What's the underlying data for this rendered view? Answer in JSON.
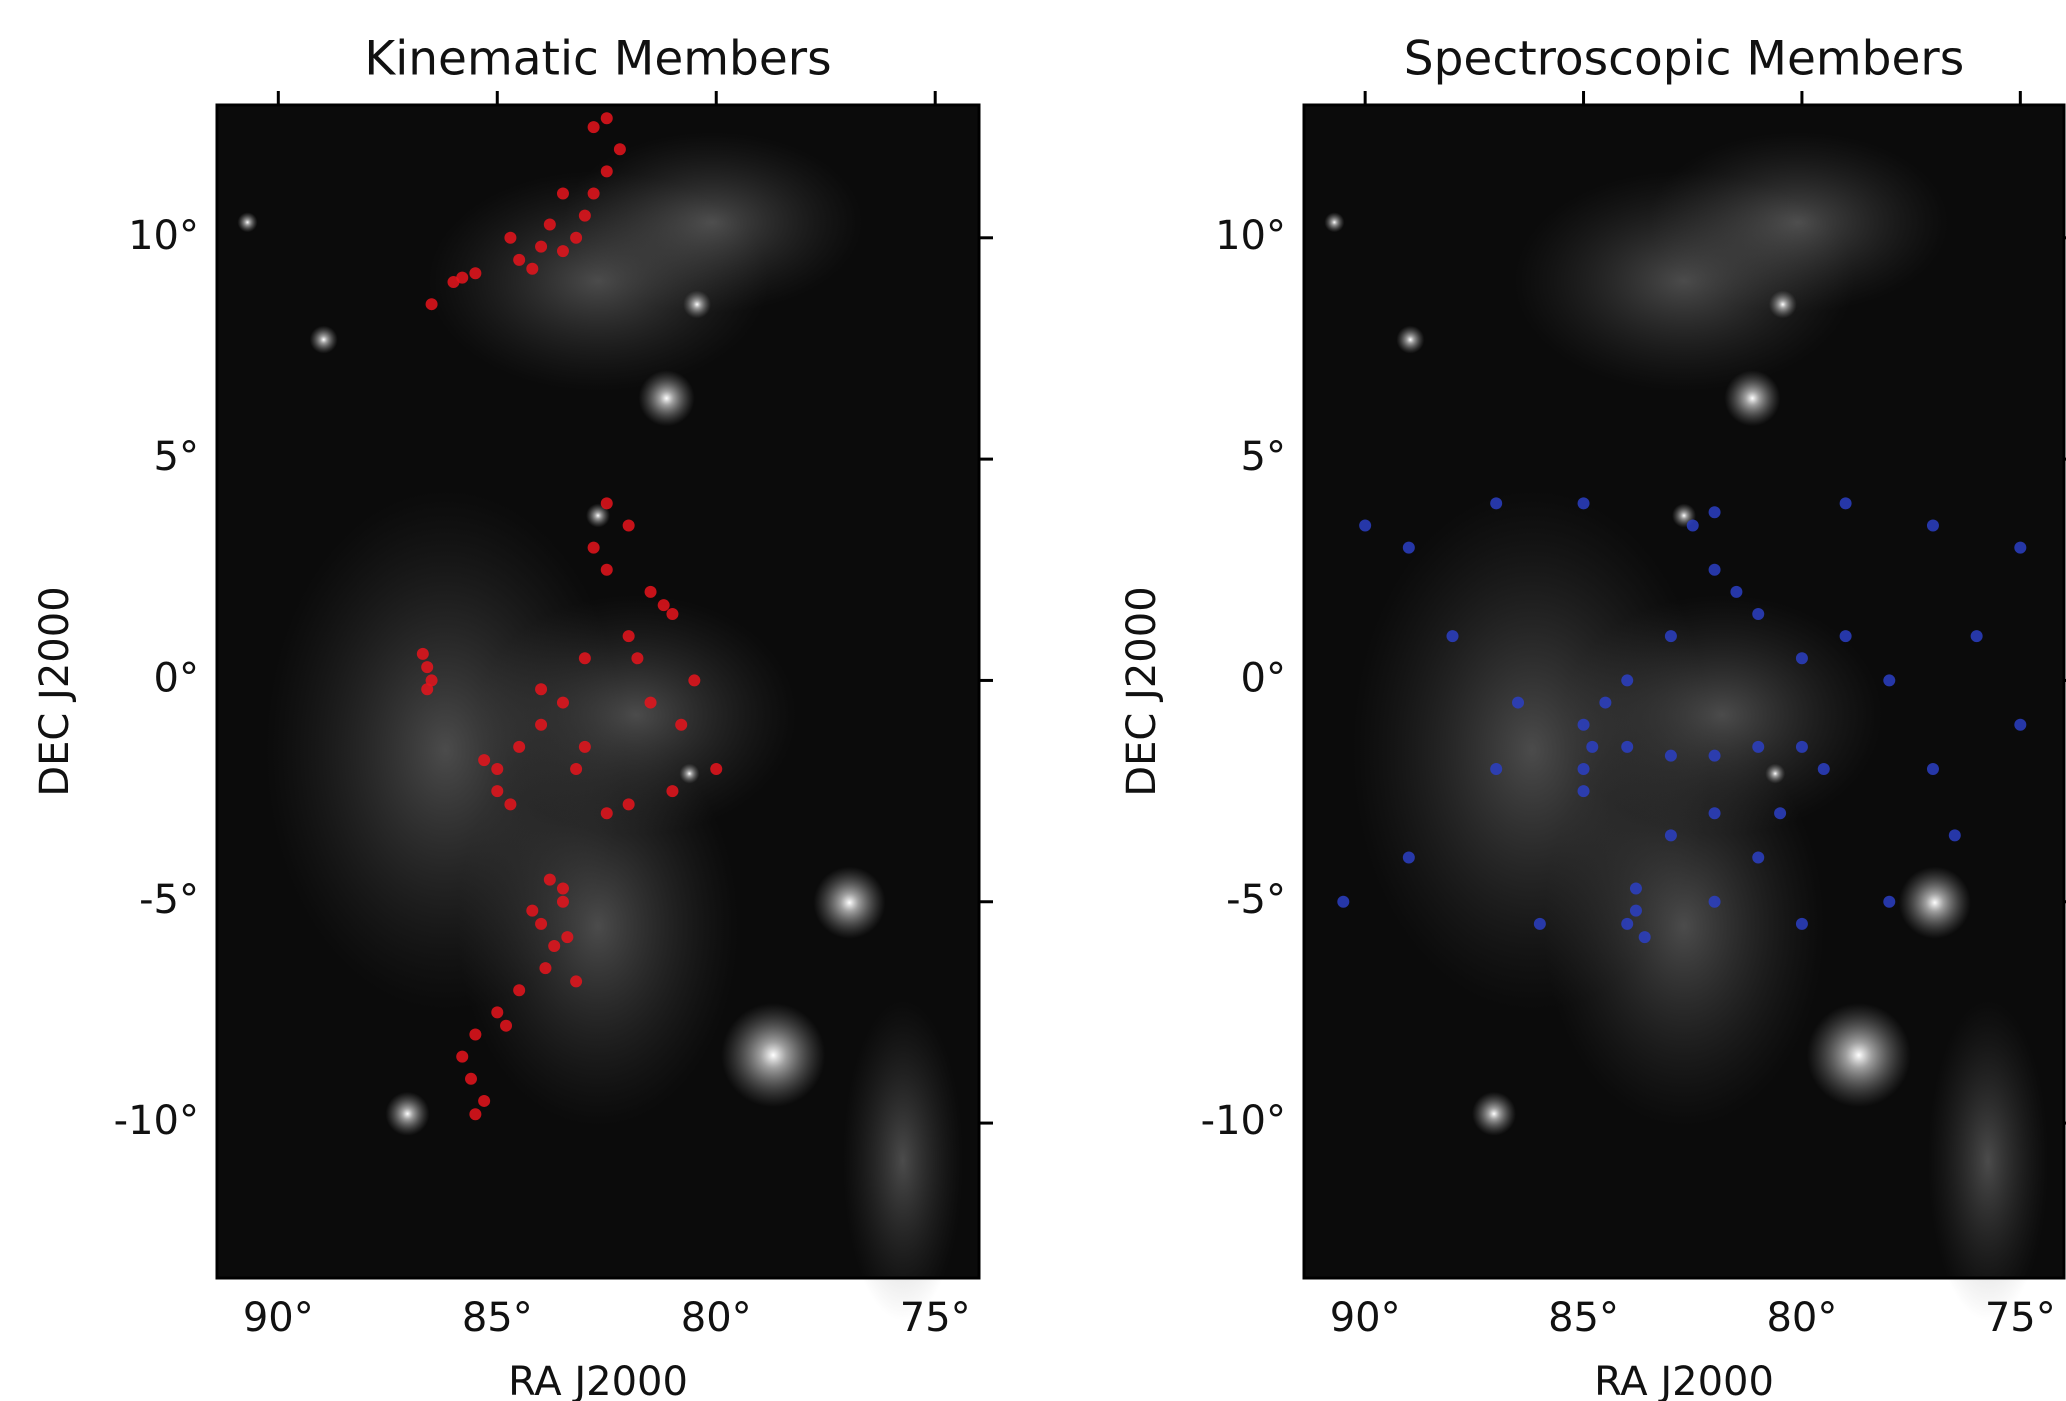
{
  "chart_data": [
    {
      "type": "scatter",
      "title": "Kinematic Members",
      "xlabel": "RA J2000",
      "ylabel": "DEC J2000",
      "color": "#e8141c",
      "xlim": [
        91.4,
        74.0
      ],
      "ylim": [
        -13.5,
        13.0
      ],
      "xticks": [
        {
          "value": 90,
          "label": "90°"
        },
        {
          "value": 85,
          "label": "85°"
        },
        {
          "value": 80,
          "label": "80°"
        },
        {
          "value": 75,
          "label": "75°"
        }
      ],
      "yticks": [
        {
          "value": 10,
          "label": "10°"
        },
        {
          "value": 5,
          "label": "5°"
        },
        {
          "value": 0,
          "label": "0°"
        },
        {
          "value": -5,
          "label": "-5°"
        },
        {
          "value": -10,
          "label": "-10°"
        }
      ],
      "x": [
        86.5,
        86,
        85.5,
        84.5,
        84,
        83.5,
        83.2,
        83,
        82.8,
        82.5,
        82.2,
        82.8,
        82.5,
        83.5,
        84.7,
        85.8,
        84.2,
        83.8,
        82.5,
        82,
        82.8,
        81.5,
        81.2,
        82,
        81,
        82.5,
        83,
        81.8,
        80.8,
        80,
        81,
        82,
        83,
        83.5,
        84,
        84.5,
        85,
        85,
        84.7,
        85.3,
        84,
        83.2,
        82.5,
        81.5,
        80.5,
        86.6,
        86.5,
        86.6,
        86.7,
        83.8,
        83.5,
        84,
        83.7,
        83.9,
        83.4,
        84.2,
        83.5,
        84.5,
        85,
        85.5,
        85.8,
        85.6,
        85.3,
        85.5,
        84.8,
        83.2
      ],
      "values": [
        8.5,
        9,
        9.2,
        9.5,
        9.8,
        9.7,
        10,
        10.5,
        11,
        11.5,
        12,
        12.5,
        12.7,
        11,
        10,
        9.1,
        9.3,
        10.3,
        4,
        3.5,
        3,
        2,
        1.7,
        1,
        1.5,
        2.5,
        0.5,
        0.5,
        -1,
        -2,
        -2.5,
        -2.8,
        -1.5,
        -0.5,
        -1,
        -1.5,
        -2,
        -2.5,
        -2.8,
        -1.8,
        -0.2,
        -2,
        -3,
        -0.5,
        0,
        0.3,
        0,
        -0.2,
        0.6,
        -4.5,
        -5,
        -5.5,
        -6,
        -6.5,
        -5.8,
        -5.2,
        -4.7,
        -7,
        -7.5,
        -8,
        -8.5,
        -9,
        -9.5,
        -9.8,
        -7.8,
        -6.8
      ]
    },
    {
      "type": "scatter",
      "title": "Spectroscopic Members",
      "xlabel": "RA J2000",
      "ylabel": "DEC J2000",
      "color": "#2b40c4",
      "xlim": [
        91.4,
        74.0
      ],
      "ylim": [
        -13.5,
        13.0
      ],
      "xticks": [
        {
          "value": 90,
          "label": "90°"
        },
        {
          "value": 85,
          "label": "85°"
        },
        {
          "value": 80,
          "label": "80°"
        },
        {
          "value": 75,
          "label": "75°"
        }
      ],
      "yticks": [
        {
          "value": 10,
          "label": "10°"
        },
        {
          "value": 5,
          "label": "5°"
        },
        {
          "value": 0,
          "label": "0°"
        },
        {
          "value": -5,
          "label": "-5°"
        },
        {
          "value": -10,
          "label": "-10°"
        }
      ],
      "x": [
        82.5,
        82,
        81.5,
        82,
        81,
        83,
        84,
        84.5,
        85,
        85,
        85,
        84.8,
        84,
        83,
        82,
        81,
        80,
        79.5,
        80,
        79,
        78,
        77,
        76.5,
        83.8,
        83.8,
        83.6,
        84,
        90.5,
        89,
        87,
        86.5,
        88,
        89,
        90,
        87,
        85,
        79,
        77,
        75,
        76,
        75,
        78,
        80,
        81,
        82,
        86,
        82,
        83,
        80.5
      ],
      "values": [
        3.5,
        3.8,
        2,
        2.5,
        1.5,
        1,
        0,
        -0.5,
        -1,
        -2,
        -2.5,
        -1.5,
        -1.5,
        -1.7,
        -1.7,
        -1.5,
        -1.5,
        -2,
        0.5,
        1,
        0,
        -2,
        -3.5,
        -4.7,
        -5.2,
        -5.8,
        -5.5,
        -5,
        -4,
        -2,
        -0.5,
        1,
        3,
        3.5,
        4,
        4,
        4,
        3.5,
        3,
        1,
        -1,
        -5,
        -5.5,
        -4,
        -5,
        -5.5,
        -3,
        -3.5,
        -3
      ]
    }
  ]
}
